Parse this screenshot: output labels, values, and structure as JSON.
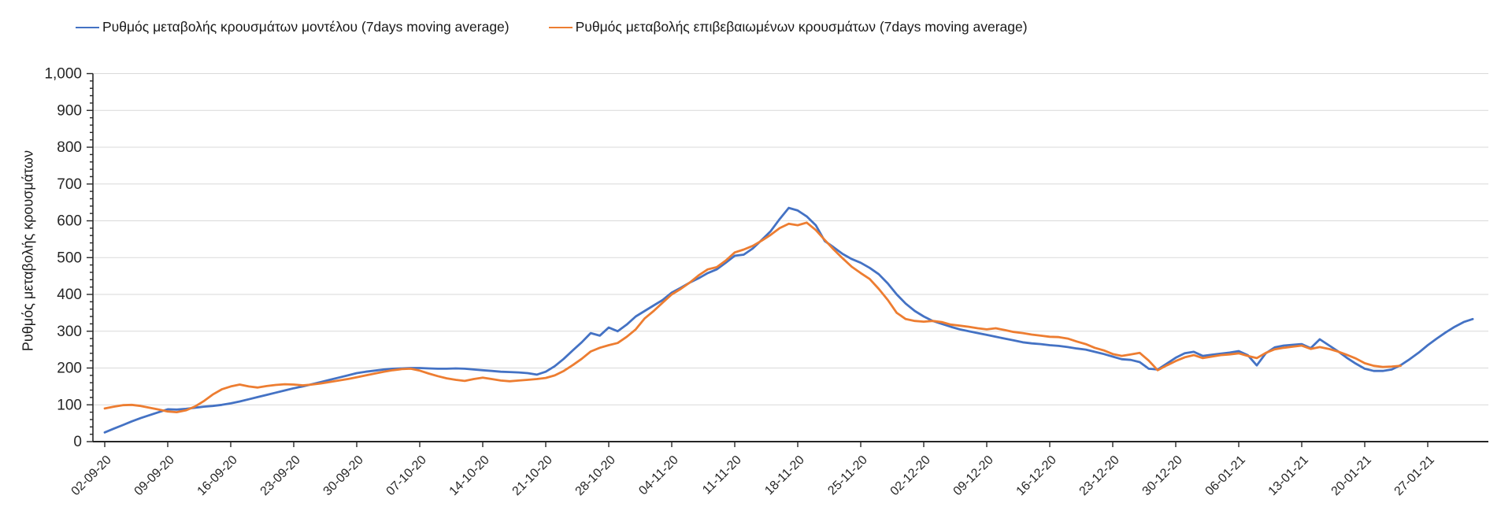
{
  "chart_data": {
    "type": "line",
    "title": "",
    "ylabel": "Ρυθμός μεταβολής κρουσμάτων",
    "xlabel": "",
    "ylim": [
      0,
      1000
    ],
    "ytick_step": 100,
    "grid": true,
    "legend_position": "top",
    "y_tick_labels": [
      "0",
      "100",
      "200",
      "300",
      "400",
      "500",
      "600",
      "700",
      "800",
      "900",
      "1,000"
    ],
    "x_tick_labels": [
      "02-09-20",
      "09-09-20",
      "16-09-20",
      "23-09-20",
      "30-09-20",
      "07-10-20",
      "14-10-20",
      "21-10-20",
      "28-10-20",
      "04-11-20",
      "11-11-20",
      "18-11-20",
      "25-11-20",
      "02-12-20",
      "09-12-20",
      "16-12-20",
      "23-12-20",
      "30-12-20",
      "06-01-21",
      "13-01-21",
      "20-01-21",
      "27-01-21"
    ],
    "x_tick_interval_days": 7,
    "x_unit": "daily points starting 02-09-20",
    "series": [
      {
        "name": "Ρυθμός μεταβολής κρουσμάτων μοντέλου (7days moving average)",
        "color": "#4472C4",
        "values": [
          25,
          35,
          45,
          55,
          64,
          72,
          80,
          88,
          87,
          89,
          92,
          95,
          97,
          100,
          104,
          109,
          115,
          121,
          127,
          133,
          139,
          145,
          150,
          156,
          162,
          168,
          174,
          180,
          186,
          190,
          193,
          196,
          198,
          199,
          200,
          200,
          199,
          198,
          198,
          199,
          198,
          196,
          194,
          192,
          190,
          189,
          188,
          186,
          182,
          190,
          205,
          225,
          248,
          270,
          295,
          288,
          310,
          300,
          318,
          340,
          355,
          370,
          385,
          405,
          418,
          432,
          444,
          458,
          468,
          486,
          505,
          508,
          525,
          548,
          572,
          605,
          635,
          628,
          612,
          588,
          545,
          528,
          510,
          496,
          486,
          472,
          455,
          430,
          400,
          375,
          355,
          340,
          328,
          320,
          312,
          305,
          300,
          295,
          290,
          285,
          280,
          275,
          270,
          267,
          265,
          262,
          260,
          257,
          253,
          250,
          244,
          238,
          231,
          224,
          222,
          216,
          198,
          196,
          212,
          228,
          240,
          244,
          233,
          236,
          239,
          242,
          246,
          235,
          207,
          240,
          256,
          261,
          263,
          265,
          254,
          278,
          262,
          246,
          228,
          212,
          198,
          192,
          192,
          196,
          208,
          224,
          242,
          262,
          280,
          297,
          312,
          325,
          333
        ]
      },
      {
        "name": "Ρυθμός μεταβολής επιβεβαιωμένων κρουσμάτων (7days moving average)",
        "color": "#ED7D31",
        "values": [
          90,
          95,
          99,
          100,
          97,
          92,
          87,
          82,
          80,
          85,
          95,
          110,
          128,
          142,
          150,
          155,
          150,
          147,
          151,
          154,
          156,
          155,
          153,
          155,
          158,
          162,
          166,
          170,
          175,
          180,
          185,
          190,
          194,
          197,
          198,
          193,
          185,
          178,
          172,
          168,
          165,
          170,
          174,
          170,
          166,
          164,
          166,
          168,
          170,
          173,
          180,
          192,
          208,
          225,
          245,
          255,
          262,
          268,
          285,
          305,
          335,
          355,
          378,
          400,
          415,
          432,
          452,
          468,
          474,
          492,
          514,
          522,
          532,
          546,
          562,
          580,
          592,
          588,
          595,
          575,
          548,
          522,
          498,
          475,
          458,
          442,
          415,
          385,
          350,
          333,
          328,
          326,
          328,
          325,
          318,
          315,
          312,
          308,
          305,
          308,
          303,
          298,
          295,
          291,
          288,
          285,
          284,
          280,
          272,
          265,
          255,
          248,
          238,
          233,
          237,
          241,
          220,
          194,
          207,
          219,
          229,
          235,
          227,
          231,
          235,
          237,
          240,
          233,
          227,
          241,
          251,
          255,
          258,
          261,
          252,
          257,
          252,
          245,
          236,
          226,
          213,
          206,
          203,
          204,
          206
        ]
      }
    ],
    "style": {
      "gridline_color": "#D9D9D9",
      "axis_color": "#262626",
      "line_width": 2.8
    }
  }
}
